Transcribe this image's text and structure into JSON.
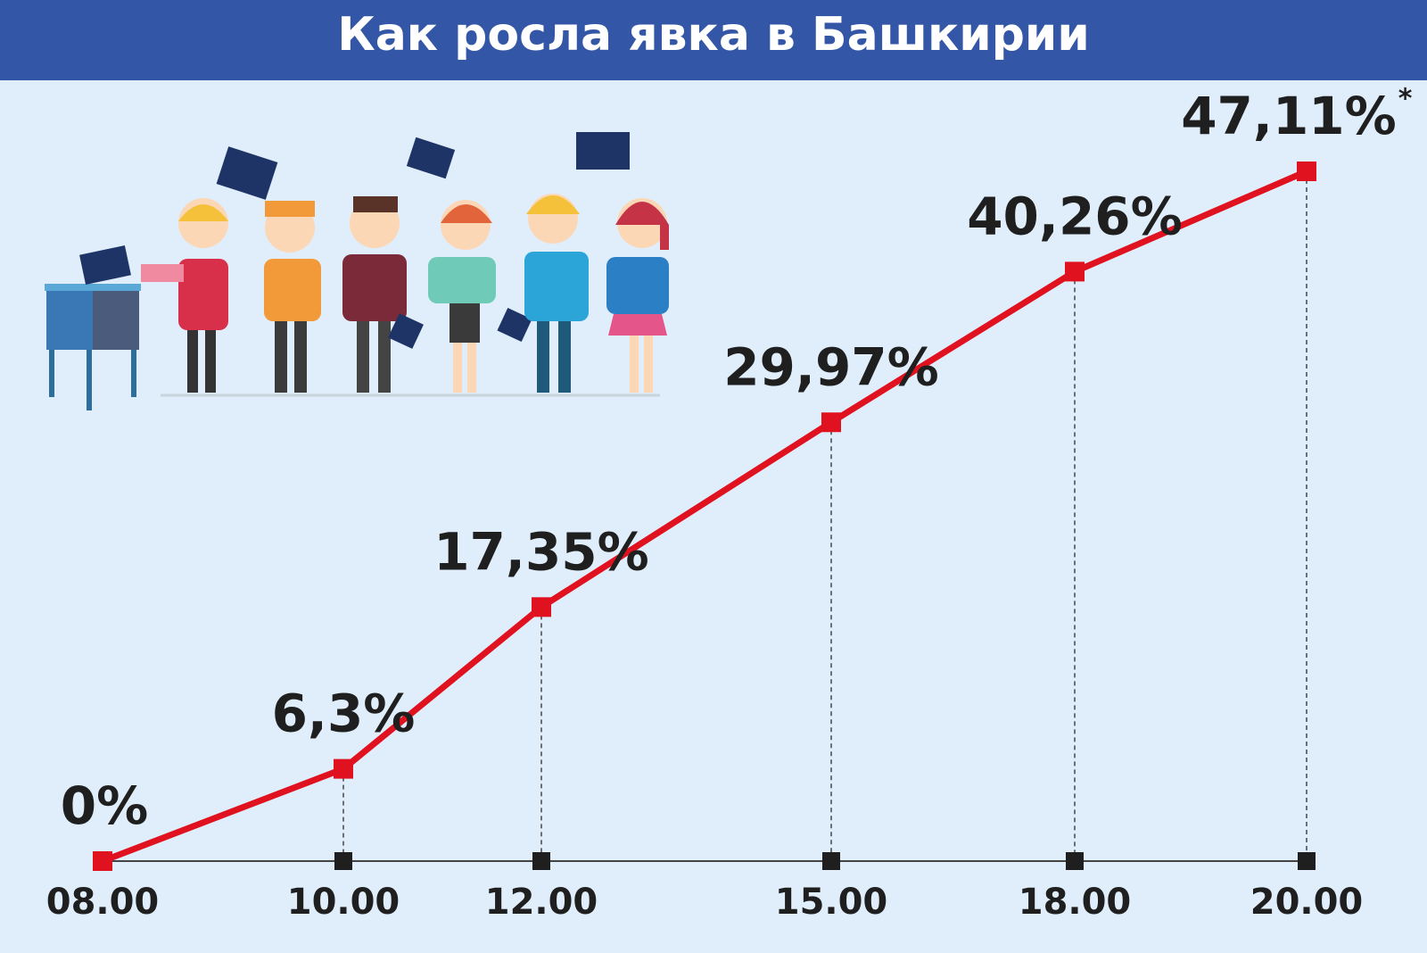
{
  "chart_data": {
    "type": "line",
    "title": "Как росла явка в Башкирии",
    "categories": [
      "08.00",
      "10.00",
      "12.00",
      "15.00",
      "18.00",
      "20.00"
    ],
    "values": [
      0,
      6.3,
      17.35,
      29.97,
      40.26,
      47.11
    ],
    "value_labels": [
      "0%",
      "6,3%",
      "17,35%",
      "29,97%",
      "40,26%",
      "47,11%"
    ],
    "footnote_mark": "*",
    "color": "#e0121f"
  }
}
